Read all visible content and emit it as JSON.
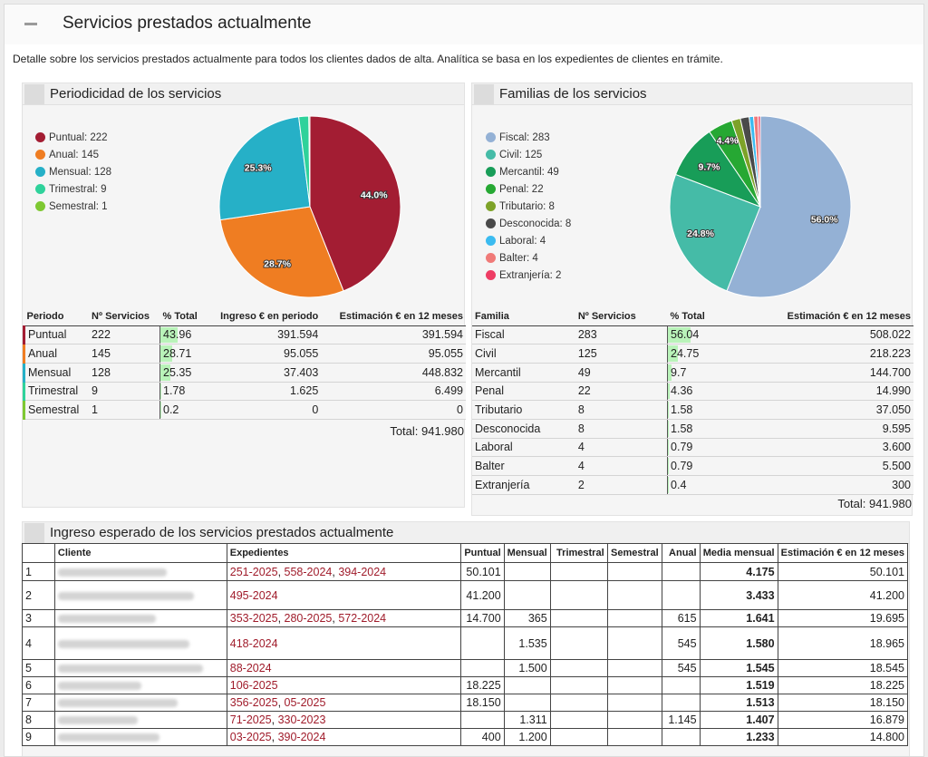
{
  "page": {
    "title": "Servicios prestados actualmente",
    "description": "Detalle sobre los servicios prestados actualmente para todos los clientes dados de alta. Analítica se basa en los expedientes de clientes en trámite."
  },
  "periodicity": {
    "title": "Periodicidad de los servicios",
    "legend": [
      "Puntual: 222",
      "Anual: 145",
      "Mensual: 128",
      "Trimestral: 9",
      "Semestral: 1"
    ],
    "headers": [
      "Periodo",
      "Nº Servicios",
      "% Total",
      "Ingreso € en periodo",
      "Estimación € en 12 meses"
    ],
    "rows": [
      {
        "name": "Puntual",
        "count": "222",
        "pct": "43.96",
        "ingreso": "391.594",
        "estimacion": "391.594"
      },
      {
        "name": "Anual",
        "count": "145",
        "pct": "28.71",
        "ingreso": "95.055",
        "estimacion": "95.055"
      },
      {
        "name": "Mensual",
        "count": "128",
        "pct": "25.35",
        "ingreso": "37.403",
        "estimacion": "448.832"
      },
      {
        "name": "Trimestral",
        "count": "9",
        "pct": "1.78",
        "ingreso": "1.625",
        "estimacion": "6.499"
      },
      {
        "name": "Semestral",
        "count": "1",
        "pct": "0.2",
        "ingreso": "0",
        "estimacion": "0"
      }
    ],
    "total": "Total: 941.980"
  },
  "families": {
    "title": "Familias de los servicios",
    "legend": [
      "Fiscal: 283",
      "Civil: 125",
      "Mercantil: 49",
      "Penal: 22",
      "Tributario: 8",
      "Desconocida: 8",
      "Laboral: 4",
      "Balter: 4",
      "Extranjería: 2"
    ],
    "headers": [
      "Familia",
      "Nº Servicios",
      "% Total",
      "Estimación € en 12 meses"
    ],
    "rows": [
      {
        "name": "Fiscal",
        "count": "283",
        "pct": "56.04",
        "estimacion": "508.022"
      },
      {
        "name": "Civil",
        "count": "125",
        "pct": "24.75",
        "estimacion": "218.223"
      },
      {
        "name": "Mercantil",
        "count": "49",
        "pct": "9.7",
        "estimacion": "144.700"
      },
      {
        "name": "Penal",
        "count": "22",
        "pct": "4.36",
        "estimacion": "14.990"
      },
      {
        "name": "Tributario",
        "count": "8",
        "pct": "1.58",
        "estimacion": "37.050"
      },
      {
        "name": "Desconocida",
        "count": "8",
        "pct": "1.58",
        "estimacion": "9.595"
      },
      {
        "name": "Laboral",
        "count": "4",
        "pct": "0.79",
        "estimacion": "3.600"
      },
      {
        "name": "Balter",
        "count": "4",
        "pct": "0.79",
        "estimacion": "5.500"
      },
      {
        "name": "Extranjería",
        "count": "2",
        "pct": "0.4",
        "estimacion": "300"
      }
    ],
    "total": "Total: 941.980"
  },
  "income": {
    "title": "Ingreso esperado de los servicios prestados actualmente",
    "headers": [
      "",
      "Cliente",
      "Expedientes",
      "Puntual",
      "Mensual",
      "Trimestral",
      "Semestral",
      "Anual",
      "Media mensual",
      "Estimación € en 12 meses"
    ],
    "rows": [
      {
        "n": "1",
        "exp": [
          "251-2025",
          "558-2024",
          "394-2024"
        ],
        "puntual": "50.101",
        "mensual": "",
        "trimestral": "",
        "semestral": "",
        "anual": "",
        "media": "4.175",
        "est": "50.101"
      },
      {
        "n": "2",
        "exp": [
          "495-2024"
        ],
        "puntual": "41.200",
        "mensual": "",
        "trimestral": "",
        "semestral": "",
        "anual": "",
        "media": "3.433",
        "est": "41.200"
      },
      {
        "n": "3",
        "exp": [
          "353-2025",
          "280-2025",
          "572-2024"
        ],
        "puntual": "14.700",
        "mensual": "365",
        "trimestral": "",
        "semestral": "",
        "anual": "615",
        "media": "1.641",
        "est": "19.695"
      },
      {
        "n": "4",
        "exp": [
          "418-2024"
        ],
        "puntual": "",
        "mensual": "1.535",
        "trimestral": "",
        "semestral": "",
        "anual": "545",
        "media": "1.580",
        "est": "18.965"
      },
      {
        "n": "5",
        "exp": [
          "88-2024"
        ],
        "puntual": "",
        "mensual": "1.500",
        "trimestral": "",
        "semestral": "",
        "anual": "545",
        "media": "1.545",
        "est": "18.545"
      },
      {
        "n": "6",
        "exp": [
          "106-2025"
        ],
        "puntual": "18.225",
        "mensual": "",
        "trimestral": "",
        "semestral": "",
        "anual": "",
        "media": "1.519",
        "est": "18.225"
      },
      {
        "n": "7",
        "exp": [
          "356-2025",
          "05-2025"
        ],
        "puntual": "18.150",
        "mensual": "",
        "trimestral": "",
        "semestral": "",
        "anual": "",
        "media": "1.513",
        "est": "18.150"
      },
      {
        "n": "8",
        "exp": [
          "71-2025",
          "330-2023"
        ],
        "puntual": "",
        "mensual": "1.311",
        "trimestral": "",
        "semestral": "",
        "anual": "1.145",
        "media": "1.407",
        "est": "16.879"
      },
      {
        "n": "9",
        "exp": [
          "03-2025",
          "390-2024"
        ],
        "puntual": "400",
        "mensual": "1.200",
        "trimestral": "",
        "semestral": "",
        "anual": "",
        "media": "1.233",
        "est": "14.800"
      }
    ]
  },
  "chart_data": [
    {
      "type": "pie",
      "title": "Periodicidad de los servicios",
      "categories": [
        "Puntual",
        "Anual",
        "Mensual",
        "Trimestral",
        "Semestral"
      ],
      "values": [
        222,
        145,
        128,
        9,
        1
      ],
      "colors": [
        "#a31d33",
        "#ef7d22",
        "#26b0c7",
        "#2fd29b",
        "#7ec832"
      ],
      "data_labels": [
        "44.0%",
        "28.7%",
        "25.3%",
        "",
        ""
      ]
    },
    {
      "type": "pie",
      "title": "Familias de los servicios",
      "categories": [
        "Fiscal",
        "Civil",
        "Mercantil",
        "Penal",
        "Tributario",
        "Desconocida",
        "Laboral",
        "Balter",
        "Extranjería"
      ],
      "values": [
        283,
        125,
        49,
        22,
        8,
        8,
        4,
        4,
        2
      ],
      "colors": [
        "#94b1d5",
        "#45bba7",
        "#189d58",
        "#26a833",
        "#7da228",
        "#4a4a4a",
        "#3bbbf0",
        "#f07a78",
        "#ee3d64"
      ],
      "data_labels": [
        "56.0%",
        "24.8%",
        "9.7%",
        "4.4%",
        "",
        "",
        "",
        "",
        ""
      ]
    }
  ]
}
